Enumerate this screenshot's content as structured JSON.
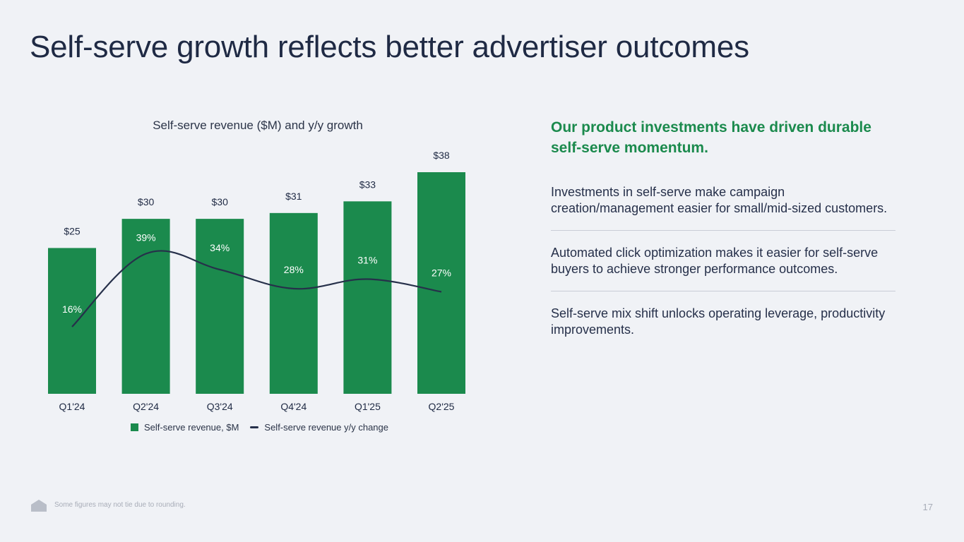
{
  "slide": {
    "title": "Self-serve growth reflects better advertiser outcomes",
    "footnote": "Some figures may not tie due to rounding.",
    "page_number": "17"
  },
  "chart_data": {
    "type": "bar",
    "title": "Self-serve revenue ($M) and y/y growth",
    "categories": [
      "Q1'24",
      "Q2'24",
      "Q3'24",
      "Q4'24",
      "Q1'25",
      "Q2'25"
    ],
    "series": [
      {
        "name": "Self-serve revenue, $M",
        "type": "bar",
        "values": [
          25,
          30,
          30,
          31,
          33,
          38
        ],
        "labels": [
          "$25",
          "$30",
          "$30",
          "$31",
          "$33",
          "$38"
        ],
        "color": "#1b8a4d"
      },
      {
        "name": "Self-serve revenue y/y change",
        "type": "line",
        "values": [
          16,
          39,
          34,
          28,
          31,
          27
        ],
        "labels": [
          "16%",
          "39%",
          "34%",
          "28%",
          "31%",
          "27%"
        ],
        "color": "#26304a"
      }
    ],
    "ylim": [
      0,
      38
    ],
    "legend": "bottom-center",
    "grid": false
  },
  "side_panel": {
    "headline": "Our product investments have driven durable self-serve momentum.",
    "bullets": [
      "Investments in self-serve make campaign creation/management easier for small/mid-sized customers.",
      "Automated click optimization makes it easier for self-serve buyers to achieve stronger performance outcomes.",
      "Self-serve mix shift unlocks operating leverage, productivity improvements."
    ]
  },
  "colors": {
    "accent_green": "#1b8a4d",
    "navy": "#1f2a44",
    "background": "#f0f2f6"
  }
}
